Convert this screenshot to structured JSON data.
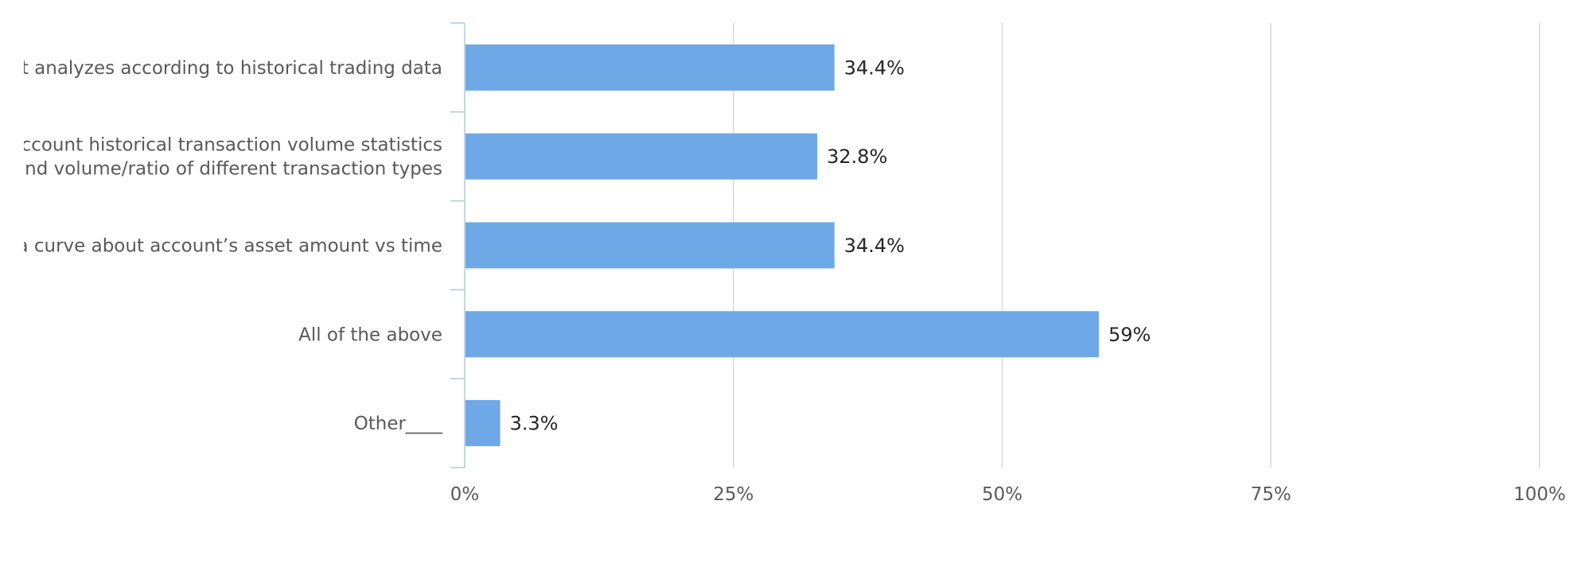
{
  "chart_data": {
    "type": "bar",
    "orientation": "horizontal",
    "categories": [
      [
        "Account analyzes according to historical trading data"
      ],
      [
        "Account historical transaction volume statistics",
        "Time and volume/ratio of different transaction types"
      ],
      [
        "Draw a curve about account’s asset amount vs time"
      ],
      [
        "All of the above"
      ],
      [
        "Other____"
      ]
    ],
    "values": [
      34.4,
      32.8,
      34.4,
      59,
      3.3
    ],
    "data_labels": [
      "34.4%",
      "32.8%",
      "34.4%",
      "59%",
      "3.3%"
    ],
    "xlim": [
      0,
      100
    ],
    "x_ticks": [
      0,
      25,
      50,
      75,
      100
    ],
    "x_tick_labels": [
      "0%",
      "25%",
      "50%",
      "75%",
      "100%"
    ],
    "grid": "vertical",
    "legend": "none",
    "colors": {
      "bar": "#6ea8e6",
      "grid": "#d9d9d9",
      "axis": "#b4c7dc"
    }
  }
}
